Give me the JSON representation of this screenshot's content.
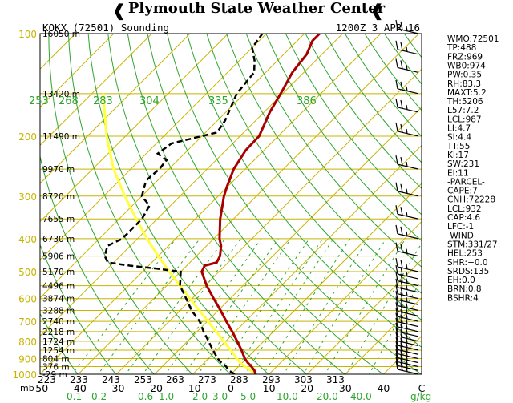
{
  "banner": {
    "title": "Plymouth State Weather Center",
    "left_glyph": "❰",
    "right_glyph": "❰"
  },
  "header": {
    "station": "KOKX (72501) Sounding",
    "time": "1200Z  3 APR 16"
  },
  "colors": {
    "isobar": "#c8b400",
    "isotherm": "#c8b400",
    "dry_adiabat": "#2ea52e",
    "mixing_ratio": "#2ea52e",
    "temperature": "#a80000",
    "dewpoint": "#000000",
    "parcel": "#ffff40",
    "wind_barb": "#000000",
    "title_text": "#000000"
  },
  "chart_data": {
    "type": "skew-t",
    "pressure_range_mb": [
      1000,
      100
    ],
    "temp_range_c": [
      -50,
      50
    ],
    "pressure_ticks": [
      100,
      200,
      300,
      400,
      500,
      600,
      700,
      800,
      900,
      1000
    ],
    "pressure_unit_label": "mb",
    "temperature_ticks": [
      -50,
      -40,
      -30,
      -20,
      -10,
      0,
      10,
      20,
      30,
      40,
      50
    ],
    "temperature_tick_labels": [
      "-50",
      "-40",
      "-30",
      "-20",
      "-10",
      "0",
      "10",
      "20",
      "30",
      "40",
      "C"
    ],
    "height_labels": [
      {
        "p": 100,
        "text": "16050 m"
      },
      {
        "p": 150,
        "text": "13420 m"
      },
      {
        "p": 200,
        "text": "11490 m"
      },
      {
        "p": 250,
        "text": "9970 m"
      },
      {
        "p": 300,
        "text": "8720 m"
      },
      {
        "p": 350,
        "text": "7655 m"
      },
      {
        "p": 400,
        "text": "6730 m"
      },
      {
        "p": 450,
        "text": "5906 m"
      },
      {
        "p": 500,
        "text": "5170 m"
      },
      {
        "p": 550,
        "text": "4496 m"
      },
      {
        "p": 600,
        "text": "3874 m"
      },
      {
        "p": 650,
        "text": "3288 m"
      },
      {
        "p": 700,
        "text": "2740 m"
      },
      {
        "p": 750,
        "text": "2218 m"
      },
      {
        "p": 800,
        "text": "1724 m"
      },
      {
        "p": 850,
        "text": "1254 m"
      },
      {
        "p": 900,
        "text": "804 m"
      },
      {
        "p": 950,
        "text": "376 m"
      },
      {
        "p": 1000,
        "text": "-29 m"
      }
    ],
    "theta_labels_top": [
      "253",
      "268",
      "283",
      "304",
      "335",
      "386"
    ],
    "theta_labels_bottom": [
      "223",
      "233",
      "243",
      "253",
      "263",
      "273",
      "283",
      "293",
      "303",
      "313"
    ],
    "mixing_ratio_labels": [
      "0.1",
      "0.2",
      "0.6",
      "1.0",
      "2.0",
      "3.0",
      "5.0",
      "10.0",
      "20.0",
      "40.0"
    ],
    "mixing_ratio_unit": "g/kg",
    "temperature": [
      {
        "p": 1000,
        "t": 6.5
      },
      {
        "p": 975,
        "t": 5.2
      },
      {
        "p": 950,
        "t": 3.4
      },
      {
        "p": 925,
        "t": 1.4
      },
      {
        "p": 900,
        "t": -0.4
      },
      {
        "p": 850,
        "t": -3.5
      },
      {
        "p": 800,
        "t": -7.0
      },
      {
        "p": 750,
        "t": -10.8
      },
      {
        "p": 700,
        "t": -15.0
      },
      {
        "p": 650,
        "t": -19.4
      },
      {
        "p": 600,
        "t": -24.3
      },
      {
        "p": 550,
        "t": -29.5
      },
      {
        "p": 500,
        "t": -34.5
      },
      {
        "p": 480,
        "t": -35.3
      },
      {
        "p": 470,
        "t": -33.0
      },
      {
        "p": 450,
        "t": -33.8
      },
      {
        "p": 420,
        "t": -36.2
      },
      {
        "p": 400,
        "t": -38.5
      },
      {
        "p": 350,
        "t": -43.5
      },
      {
        "p": 300,
        "t": -48.5
      },
      {
        "p": 280,
        "t": -50.3
      },
      {
        "p": 250,
        "t": -53.0
      },
      {
        "p": 220,
        "t": -54.8
      },
      {
        "p": 200,
        "t": -55.0
      },
      {
        "p": 170,
        "t": -58.5
      },
      {
        "p": 150,
        "t": -60.5
      },
      {
        "p": 130,
        "t": -63.0
      },
      {
        "p": 115,
        "t": -64.0
      },
      {
        "p": 105,
        "t": -66.0
      },
      {
        "p": 100,
        "t": -66.0
      }
    ],
    "dewpoint": [
      {
        "p": 1000,
        "t": 1.0
      },
      {
        "p": 975,
        "t": -1.5
      },
      {
        "p": 950,
        "t": -3.2
      },
      {
        "p": 925,
        "t": -5.5
      },
      {
        "p": 900,
        "t": -7.5
      },
      {
        "p": 850,
        "t": -11.0
      },
      {
        "p": 800,
        "t": -14.5
      },
      {
        "p": 750,
        "t": -18.3
      },
      {
        "p": 700,
        "t": -22.0
      },
      {
        "p": 650,
        "t": -27.0
      },
      {
        "p": 600,
        "t": -31.5
      },
      {
        "p": 550,
        "t": -36.5
      },
      {
        "p": 500,
        "t": -40.0
      },
      {
        "p": 490,
        "t": -47.0
      },
      {
        "p": 480,
        "t": -55.0
      },
      {
        "p": 470,
        "t": -61.5
      },
      {
        "p": 450,
        "t": -64.0
      },
      {
        "p": 420,
        "t": -66.0
      },
      {
        "p": 400,
        "t": -64.0
      },
      {
        "p": 350,
        "t": -64.0
      },
      {
        "p": 320,
        "t": -65.5
      },
      {
        "p": 300,
        "t": -70.0
      },
      {
        "p": 270,
        "t": -73.0
      },
      {
        "p": 250,
        "t": -72.5
      },
      {
        "p": 235,
        "t": -73.0
      },
      {
        "p": 225,
        "t": -77.0
      },
      {
        "p": 210,
        "t": -76.0
      },
      {
        "p": 195,
        "t": -67.0
      },
      {
        "p": 180,
        "t": -68.0
      },
      {
        "p": 150,
        "t": -72.0
      },
      {
        "p": 130,
        "t": -73.0
      },
      {
        "p": 120,
        "t": -76.0
      },
      {
        "p": 110,
        "t": -80.0
      },
      {
        "p": 100,
        "t": -81.0
      }
    ],
    "parcel": [
      {
        "p": 1000,
        "t": 6.5
      },
      {
        "p": 950,
        "t": 1.8
      },
      {
        "p": 932,
        "t": 0.0
      },
      {
        "p": 900,
        "t": -2.5
      },
      {
        "p": 850,
        "t": -6.3
      },
      {
        "p": 800,
        "t": -10.5
      },
      {
        "p": 750,
        "t": -15.0
      },
      {
        "p": 700,
        "t": -19.8
      },
      {
        "p": 650,
        "t": -25.0
      },
      {
        "p": 600,
        "t": -30.5
      },
      {
        "p": 550,
        "t": -36.5
      },
      {
        "p": 500,
        "t": -43.0
      },
      {
        "p": 450,
        "t": -50.0
      },
      {
        "p": 400,
        "t": -57.5
      },
      {
        "p": 350,
        "t": -65.5
      },
      {
        "p": 300,
        "t": -74.5
      },
      {
        "p": 250,
        "t": -84.5
      },
      {
        "p": 200,
        "t": -95.0
      },
      {
        "p": 150,
        "t": -107.0
      }
    ],
    "wind_pressures": [
      1000,
      975,
      950,
      925,
      900,
      875,
      850,
      825,
      800,
      775,
      750,
      725,
      700,
      675,
      650,
      625,
      600,
      575,
      550,
      525,
      500,
      450,
      400,
      350,
      300,
      250,
      200,
      170,
      150,
      130,
      115,
      100
    ],
    "indices": [
      "WMO:72501",
      "TP:488",
      "FRZ:969",
      "WB0:974",
      "PW:0.35",
      "RH:83.3",
      "MAXT:5.2",
      "TH:5206",
      "L57:7.2",
      "LCL:987",
      "LI:4.7",
      "SI:4.4",
      "TT:55",
      "KI:17",
      "SW:231",
      "EI:11",
      "-PARCEL-",
      "CAPE:7",
      "CNH:72228",
      "LCL:932",
      "CAP:4.6",
      "LFC:-1",
      "-WIND-",
      "STM:331/27",
      "HEL:253",
      "SHR:+0.0",
      "SRDS:135",
      "EH:0.0",
      "BRN:0.8",
      "BSHR:4"
    ]
  }
}
